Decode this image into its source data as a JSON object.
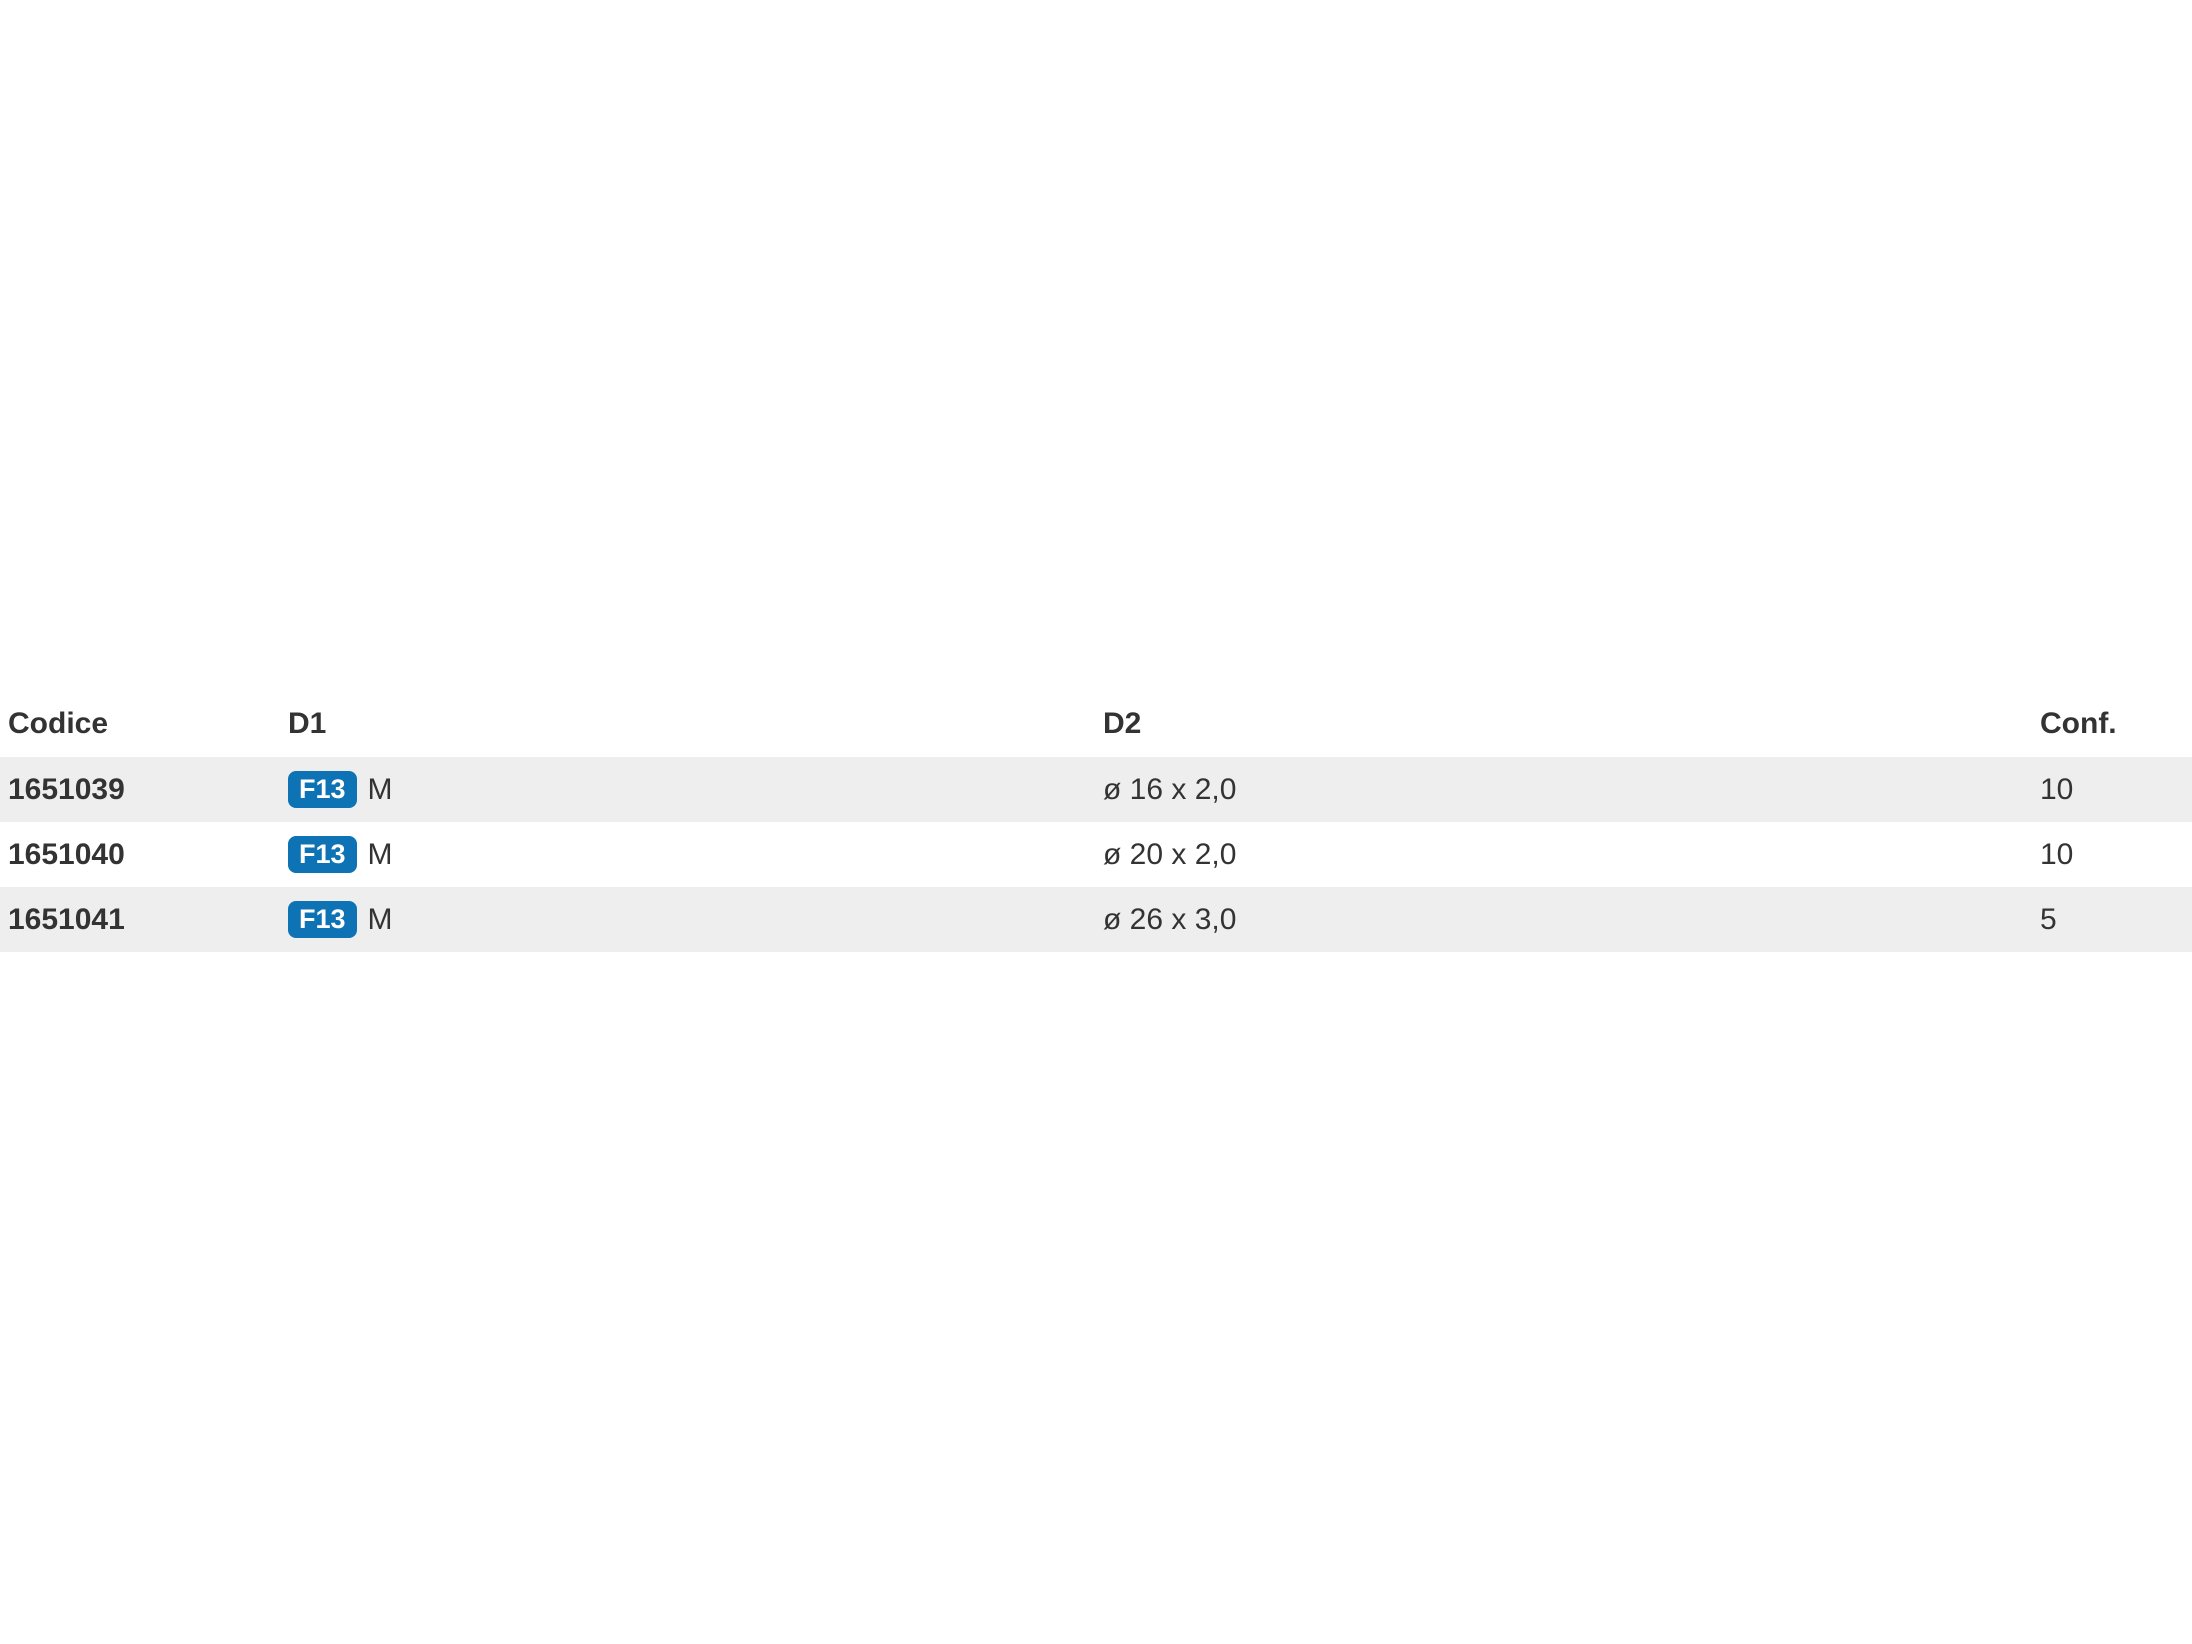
{
  "table": {
    "columns": [
      {
        "key": "codice",
        "label": "Codice"
      },
      {
        "key": "d1",
        "label": "D1"
      },
      {
        "key": "d2",
        "label": "D2"
      },
      {
        "key": "conf",
        "label": "Conf."
      }
    ],
    "rows": [
      {
        "codice": "1651039",
        "d1_badge": "F13",
        "d1_text": "M",
        "d2": "ø 16 x 2,0",
        "conf": "10"
      },
      {
        "codice": "1651040",
        "d1_badge": "F13",
        "d1_text": "M",
        "d2": "ø 20 x 2,0",
        "conf": "10"
      },
      {
        "codice": "1651041",
        "d1_badge": "F13",
        "d1_text": "M",
        "d2": "ø 26 x 3,0",
        "conf": "5"
      }
    ],
    "colors": {
      "badge_bg": "#0e73b5",
      "row_alt_bg": "#eeeeee",
      "text": "#333333"
    }
  }
}
